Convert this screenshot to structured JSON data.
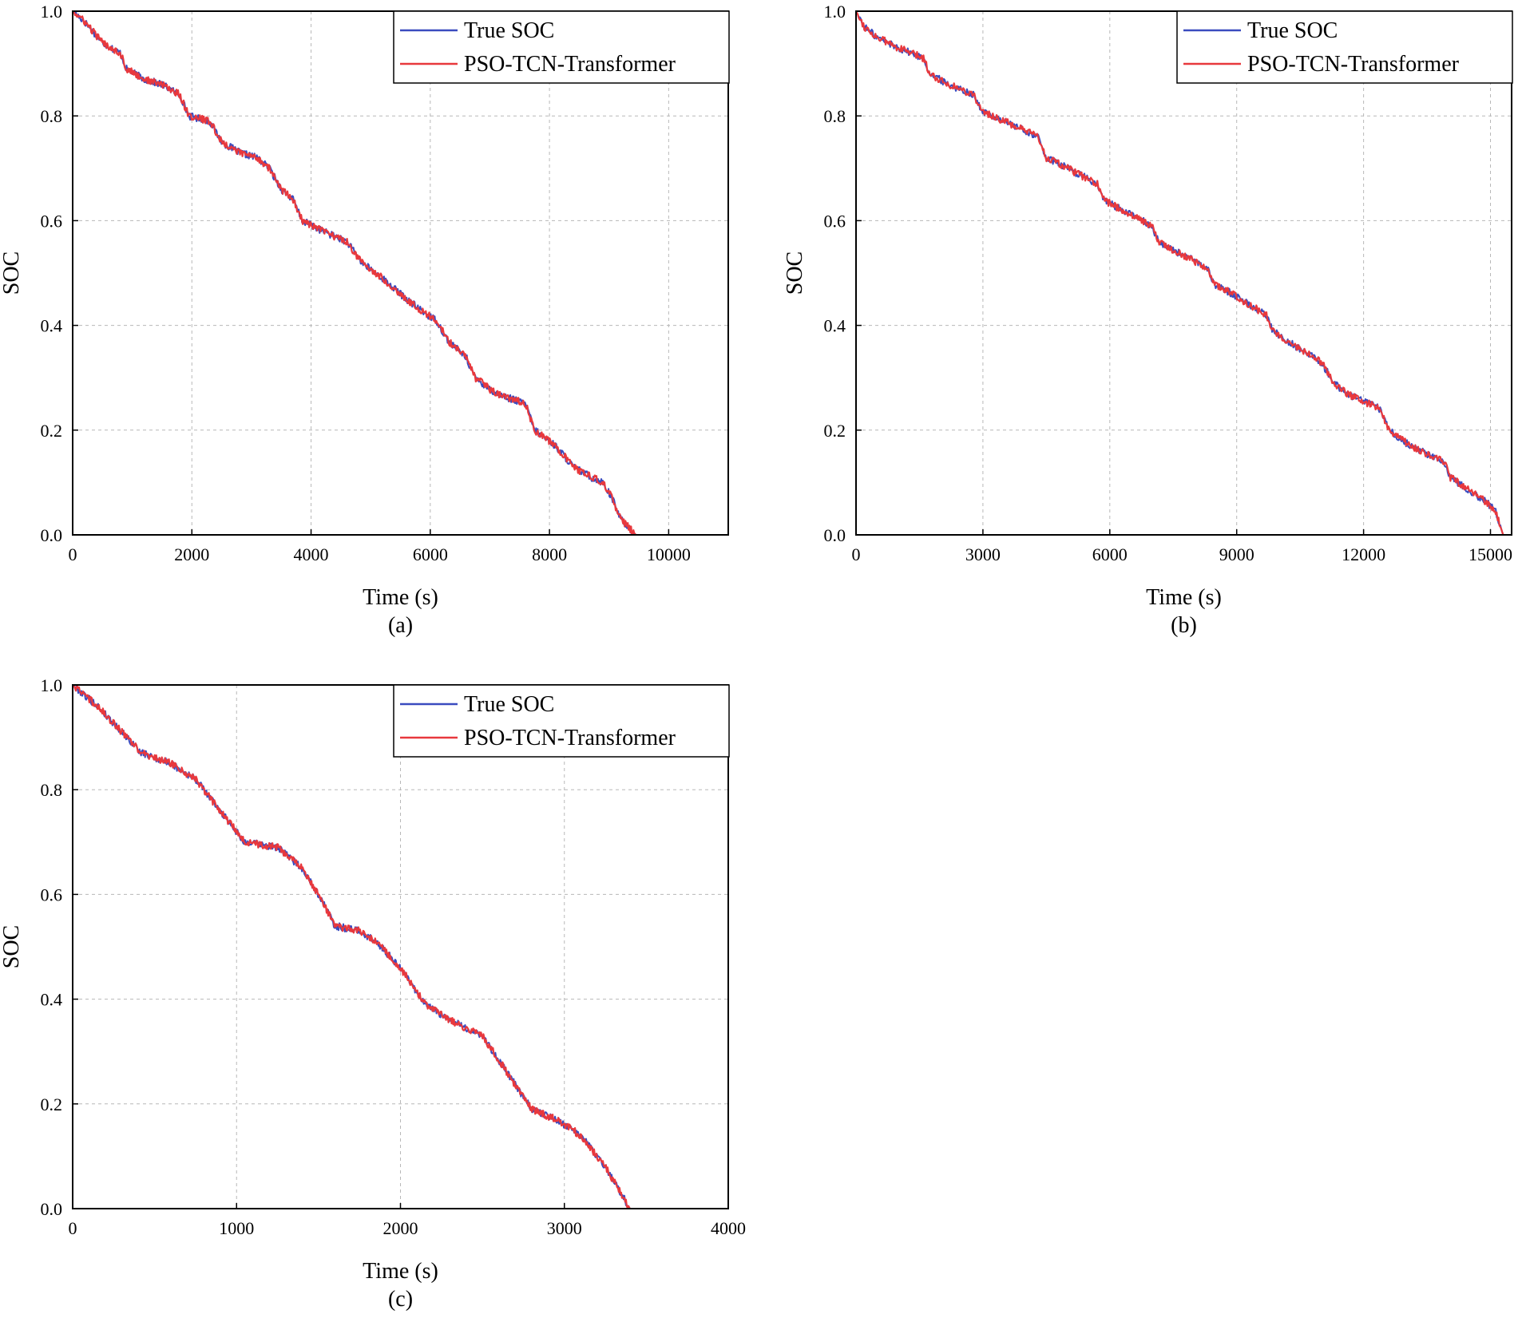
{
  "chart_data": [
    {
      "id": "a",
      "type": "line",
      "panel_label": "(a)",
      "xlabel": "Time (s)",
      "ylabel": "SOC",
      "xlim": [
        0,
        11000
      ],
      "ylim": [
        0,
        1.0
      ],
      "xticks": [
        0,
        2000,
        4000,
        6000,
        8000,
        10000
      ],
      "yticks": [
        0.0,
        0.2,
        0.4,
        0.6,
        0.8,
        1.0
      ],
      "xtick_labels": [
        "0",
        "2000",
        "4000",
        "6000",
        "8000",
        "10000"
      ],
      "ytick_labels": [
        "0.0",
        "0.2",
        "0.4",
        "0.6",
        "0.8",
        "1.0"
      ],
      "grid": true,
      "legend_position": "top-right",
      "series": [
        {
          "name": "True SOC",
          "color": "#3a4bbf",
          "x": [
            0,
            200,
            500,
            800,
            900,
            1200,
            1500,
            1800,
            1950,
            2300,
            2500,
            2800,
            3100,
            3300,
            3500,
            3700,
            3850,
            4200,
            4600,
            4850,
            5200,
            5600,
            5950,
            6100,
            6300,
            6600,
            6750,
            7100,
            7600,
            7750,
            8100,
            8400,
            8700,
            8900,
            9050,
            9200,
            9450
          ],
          "values": [
            1.0,
            0.98,
            0.94,
            0.92,
            0.89,
            0.87,
            0.86,
            0.84,
            0.8,
            0.79,
            0.75,
            0.73,
            0.72,
            0.7,
            0.66,
            0.64,
            0.6,
            0.58,
            0.56,
            0.52,
            0.49,
            0.45,
            0.42,
            0.41,
            0.37,
            0.34,
            0.3,
            0.27,
            0.25,
            0.2,
            0.17,
            0.13,
            0.11,
            0.1,
            0.07,
            0.03,
            0.0
          ]
        },
        {
          "name": "PSO-TCN-Transformer",
          "color": "#e8383d",
          "x": [
            0,
            200,
            500,
            800,
            900,
            1200,
            1500,
            1800,
            1950,
            2300,
            2500,
            2800,
            3100,
            3300,
            3500,
            3700,
            3850,
            4200,
            4600,
            4850,
            5200,
            5600,
            5950,
            6100,
            6300,
            6600,
            6750,
            7100,
            7600,
            7750,
            8100,
            8400,
            8700,
            8900,
            9050,
            9200,
            9450
          ],
          "values": [
            1.0,
            0.98,
            0.94,
            0.92,
            0.89,
            0.87,
            0.86,
            0.84,
            0.8,
            0.79,
            0.75,
            0.73,
            0.72,
            0.7,
            0.66,
            0.64,
            0.6,
            0.58,
            0.56,
            0.52,
            0.49,
            0.45,
            0.42,
            0.41,
            0.37,
            0.34,
            0.3,
            0.27,
            0.25,
            0.2,
            0.17,
            0.13,
            0.11,
            0.1,
            0.07,
            0.03,
            0.0
          ]
        }
      ]
    },
    {
      "id": "b",
      "type": "line",
      "panel_label": "(b)",
      "xlabel": "Time (s)",
      "ylabel": "SOC",
      "xlim": [
        0,
        15500
      ],
      "ylim": [
        0,
        1.0
      ],
      "xticks": [
        0,
        3000,
        6000,
        9000,
        12000,
        15000
      ],
      "yticks": [
        0.0,
        0.2,
        0.4,
        0.6,
        0.8,
        1.0
      ],
      "xtick_labels": [
        "0",
        "3000",
        "6000",
        "9000",
        "12000",
        "15000"
      ],
      "ytick_labels": [
        "0.0",
        "0.2",
        "0.4",
        "0.6",
        "0.8",
        "1.0"
      ],
      "grid": true,
      "legend_position": "top-right",
      "series": [
        {
          "name": "True SOC",
          "color": "#3a4bbf",
          "x": [
            0,
            200,
            500,
            1000,
            1600,
            1750,
            2200,
            2800,
            2950,
            3500,
            4300,
            4500,
            5000,
            5700,
            5850,
            6300,
            7000,
            7150,
            7600,
            8300,
            8450,
            8900,
            9700,
            9850,
            10400,
            11000,
            11300,
            11600,
            12400,
            12600,
            13100,
            13900,
            14050,
            14600,
            15100,
            15300
          ],
          "values": [
            1.0,
            0.97,
            0.95,
            0.93,
            0.91,
            0.88,
            0.86,
            0.84,
            0.81,
            0.79,
            0.76,
            0.72,
            0.7,
            0.67,
            0.64,
            0.62,
            0.59,
            0.56,
            0.54,
            0.51,
            0.48,
            0.46,
            0.42,
            0.39,
            0.36,
            0.33,
            0.29,
            0.27,
            0.24,
            0.2,
            0.17,
            0.14,
            0.11,
            0.08,
            0.05,
            0.0
          ]
        },
        {
          "name": "PSO-TCN-Transformer",
          "color": "#e8383d",
          "x": [
            0,
            200,
            500,
            1000,
            1600,
            1750,
            2200,
            2800,
            2950,
            3500,
            4300,
            4500,
            5000,
            5700,
            5850,
            6300,
            7000,
            7150,
            7600,
            8300,
            8450,
            8900,
            9700,
            9850,
            10400,
            11000,
            11300,
            11600,
            12400,
            12600,
            13100,
            13900,
            14050,
            14600,
            15100,
            15300
          ],
          "values": [
            1.0,
            0.97,
            0.95,
            0.93,
            0.91,
            0.88,
            0.86,
            0.84,
            0.81,
            0.79,
            0.76,
            0.72,
            0.7,
            0.67,
            0.64,
            0.62,
            0.59,
            0.56,
            0.54,
            0.51,
            0.48,
            0.46,
            0.42,
            0.39,
            0.36,
            0.33,
            0.29,
            0.27,
            0.24,
            0.2,
            0.17,
            0.14,
            0.11,
            0.08,
            0.05,
            0.0
          ]
        }
      ]
    },
    {
      "id": "c",
      "type": "line",
      "panel_label": "(c)",
      "xlabel": "Time (s)",
      "ylabel": "SOC",
      "xlim": [
        0,
        4000
      ],
      "ylim": [
        0,
        1.0
      ],
      "xticks": [
        0,
        1000,
        2000,
        3000,
        4000
      ],
      "yticks": [
        0.0,
        0.2,
        0.4,
        0.6,
        0.8,
        1.0
      ],
      "xtick_labels": [
        "0",
        "1000",
        "2000",
        "3000",
        "4000"
      ],
      "ytick_labels": [
        "0.0",
        "0.2",
        "0.4",
        "0.6",
        "0.8",
        "1.0"
      ],
      "grid": true,
      "legend_position": "top-right",
      "series": [
        {
          "name": "True SOC",
          "color": "#3a4bbf",
          "x": [
            0,
            150,
            300,
            420,
            600,
            750,
            900,
            1050,
            1250,
            1400,
            1500,
            1600,
            1750,
            1850,
            2000,
            2150,
            2300,
            2500,
            2650,
            2800,
            2950,
            3100,
            3250,
            3400
          ],
          "values": [
            1.0,
            0.96,
            0.91,
            0.87,
            0.85,
            0.82,
            0.76,
            0.7,
            0.69,
            0.65,
            0.6,
            0.54,
            0.53,
            0.51,
            0.46,
            0.39,
            0.36,
            0.33,
            0.26,
            0.19,
            0.17,
            0.14,
            0.08,
            0.0
          ]
        },
        {
          "name": "PSO-TCN-Transformer",
          "color": "#e8383d",
          "x": [
            0,
            150,
            300,
            420,
            600,
            750,
            900,
            1050,
            1250,
            1400,
            1500,
            1600,
            1750,
            1850,
            2000,
            2150,
            2300,
            2500,
            2650,
            2800,
            2950,
            3100,
            3250,
            3400
          ],
          "values": [
            1.0,
            0.96,
            0.91,
            0.87,
            0.85,
            0.82,
            0.76,
            0.7,
            0.69,
            0.65,
            0.6,
            0.54,
            0.53,
            0.51,
            0.46,
            0.39,
            0.36,
            0.33,
            0.26,
            0.19,
            0.17,
            0.14,
            0.08,
            0.0
          ]
        }
      ]
    }
  ]
}
